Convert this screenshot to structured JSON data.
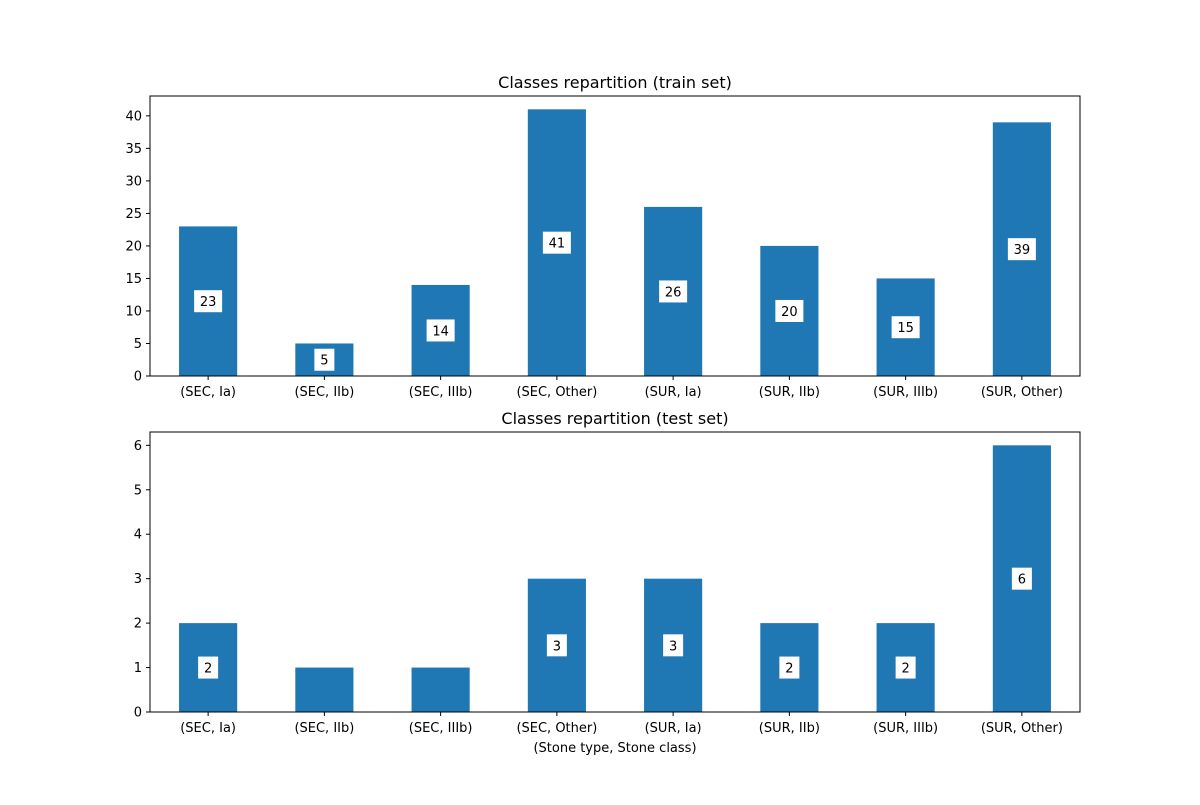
{
  "chart_data": [
    {
      "type": "bar",
      "title": "Classes repartition (train set)",
      "xlabel": "",
      "ylabel": "",
      "categories": [
        "(SEC, Ia)",
        "(SEC, IIb)",
        "(SEC, IIIb)",
        "(SEC, Other)",
        "(SUR, Ia)",
        "(SUR, IIb)",
        "(SUR, IIIb)",
        "(SUR, Other)"
      ],
      "values": [
        23,
        5,
        14,
        41,
        26,
        20,
        15,
        39
      ],
      "data_labels": [
        "23",
        "5",
        "14",
        "41",
        "26",
        "20",
        "15",
        "39"
      ],
      "ylim": [
        0,
        43.05
      ],
      "yticks": [
        0,
        5,
        10,
        15,
        20,
        25,
        30,
        35,
        40
      ],
      "bar_color": "#1f77b4",
      "grid": false,
      "legend": "none"
    },
    {
      "type": "bar",
      "title": "Classes repartition (test set)",
      "xlabel": "(Stone type, Stone class)",
      "ylabel": "",
      "categories": [
        "(SEC, Ia)",
        "(SEC, IIb)",
        "(SEC, IIIb)",
        "(SEC, Other)",
        "(SUR, Ia)",
        "(SUR, IIb)",
        "(SUR, IIIb)",
        "(SUR, Other)"
      ],
      "values": [
        2,
        1,
        1,
        3,
        3,
        2,
        2,
        6
      ],
      "data_labels": [
        "2",
        "",
        "",
        "3",
        "3",
        "2",
        "2",
        "6"
      ],
      "ylim": [
        0,
        6.3
      ],
      "yticks": [
        0,
        1,
        2,
        3,
        4,
        5,
        6
      ],
      "bar_color": "#1f77b4",
      "grid": false,
      "legend": "none"
    }
  ]
}
